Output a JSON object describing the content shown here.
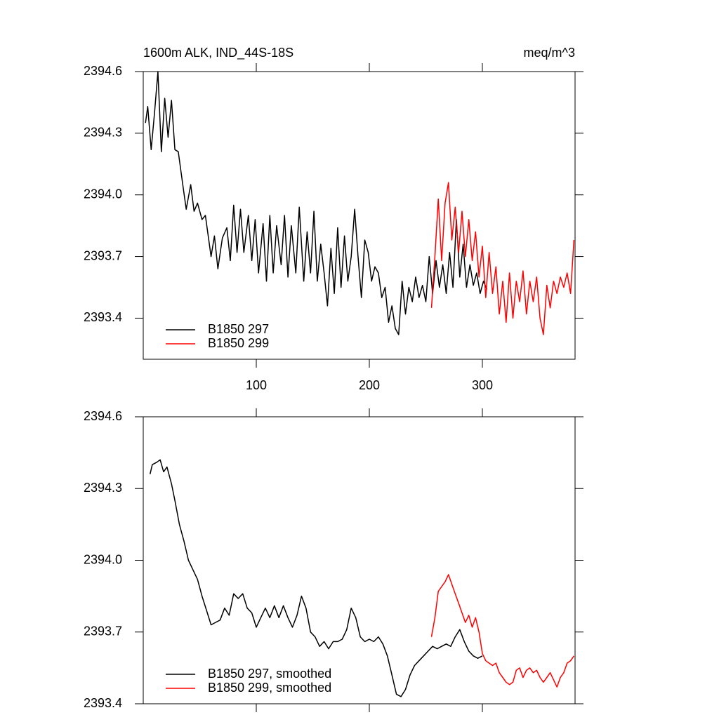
{
  "chart_data": [
    {
      "type": "line",
      "title": "1600m ALK, IND_44S-18S",
      "units": "meq/m^3",
      "xlim": [
        0,
        382
      ],
      "xticks": [
        100,
        200,
        300
      ],
      "ylim": [
        2393.2,
        2394.6
      ],
      "yticks": [
        2393.4,
        2393.7,
        {
          "value": 2394,
          "label": "2394.0"
        },
        2394.3,
        2394.6
      ],
      "legend": "bottom-left",
      "series": [
        {
          "name": "B1850 297",
          "color": "#000000",
          "x": [
            2,
            4,
            7,
            10,
            13,
            16,
            19,
            22,
            25,
            28,
            31,
            35,
            38,
            42,
            45,
            48,
            52,
            55,
            60,
            63,
            66,
            70,
            74,
            77,
            80,
            83,
            86,
            89,
            93,
            96,
            99,
            102,
            106,
            109,
            112,
            115,
            118,
            122,
            125,
            128,
            131,
            135,
            138,
            142,
            145,
            148,
            151,
            154,
            157,
            160,
            163,
            166,
            169,
            172,
            175,
            178,
            181,
            184,
            187,
            190,
            193,
            196,
            199,
            202,
            205,
            208,
            211,
            214,
            217,
            220,
            223,
            226,
            229,
            232,
            235,
            238,
            241,
            244,
            247,
            250,
            253,
            256,
            259,
            262,
            265,
            268,
            271,
            274,
            277,
            280,
            283,
            286,
            289,
            292,
            295,
            298,
            301,
            304
          ],
          "values": [
            2394.35,
            2394.43,
            2394.22,
            2394.4,
            2394.6,
            2394.21,
            2394.47,
            2394.28,
            2394.46,
            2394.22,
            2394.21,
            2394.05,
            2393.93,
            2394.05,
            2393.92,
            2393.96,
            2393.88,
            2393.9,
            2393.7,
            2393.8,
            2393.64,
            2393.79,
            2393.84,
            2393.68,
            2393.95,
            2393.72,
            2393.93,
            2393.72,
            2393.9,
            2393.68,
            2393.88,
            2393.62,
            2393.86,
            2393.58,
            2393.9,
            2393.62,
            2393.85,
            2393.66,
            2393.9,
            2393.6,
            2393.85,
            2393.62,
            2393.94,
            2393.58,
            2393.82,
            2393.62,
            2393.92,
            2393.58,
            2393.76,
            2393.62,
            2393.46,
            2393.74,
            2393.52,
            2393.84,
            2393.55,
            2393.8,
            2393.58,
            2393.7,
            2393.93,
            2393.7,
            2393.5,
            2393.78,
            2393.72,
            2393.58,
            2393.65,
            2393.62,
            2393.5,
            2393.55,
            2393.38,
            2393.46,
            2393.35,
            2393.32,
            2393.58,
            2393.42,
            2393.55,
            2393.48,
            2393.6,
            2393.5,
            2393.56,
            2393.48,
            2393.7,
            2393.52,
            2393.68,
            2393.55,
            2393.66,
            2393.52,
            2393.72,
            2393.55,
            2393.88,
            2393.6,
            2393.76,
            2393.55,
            2393.66,
            2393.56,
            2393.62,
            2393.52,
            2393.58,
            2393.54
          ]
        },
        {
          "name": "B1850 299",
          "color": "#ff0000",
          "x": [
            255,
            258,
            261,
            264,
            267,
            270,
            273,
            276,
            279,
            282,
            285,
            288,
            291,
            294,
            297,
            300,
            303,
            306,
            309,
            312,
            315,
            318,
            321,
            324,
            327,
            330,
            333,
            336,
            339,
            342,
            345,
            348,
            351,
            354,
            357,
            360,
            363,
            366,
            369,
            372,
            375,
            378,
            381
          ],
          "values": [
            2393.45,
            2393.7,
            2393.98,
            2393.68,
            2393.96,
            2394.06,
            2393.78,
            2393.94,
            2393.72,
            2393.92,
            2393.7,
            2393.88,
            2393.68,
            2393.82,
            2393.6,
            2393.75,
            2393.5,
            2393.72,
            2393.52,
            2393.65,
            2393.42,
            2393.58,
            2393.38,
            2393.62,
            2393.4,
            2393.58,
            2393.48,
            2393.63,
            2393.42,
            2393.58,
            2393.48,
            2393.6,
            2393.4,
            2393.32,
            2393.56,
            2393.45,
            2393.58,
            2393.52,
            2393.6,
            2393.55,
            2393.62,
            2393.52,
            2393.78
          ]
        }
      ]
    },
    {
      "type": "line",
      "xlim": [
        0,
        382
      ],
      "xticks": [
        100,
        200,
        300
      ],
      "ylim": [
        2393.4,
        2394.6
      ],
      "yticks": [
        2393.4,
        2393.7,
        {
          "value": 2394,
          "label": "2394.0"
        },
        2394.3,
        2394.6
      ],
      "legend": "bottom-left",
      "series": [
        {
          "name": "B1850 297, smoothed",
          "color": "#000000",
          "x": [
            6,
            8,
            12,
            15,
            18,
            21,
            25,
            28,
            32,
            36,
            40,
            44,
            48,
            52,
            56,
            60,
            64,
            68,
            72,
            76,
            80,
            84,
            88,
            92,
            96,
            100,
            104,
            108,
            112,
            116,
            120,
            124,
            128,
            132,
            136,
            140,
            144,
            148,
            152,
            156,
            160,
            164,
            168,
            172,
            176,
            180,
            184,
            188,
            192,
            196,
            200,
            204,
            208,
            212,
            216,
            220,
            224,
            228,
            232,
            236,
            240,
            244,
            248,
            252,
            256,
            260,
            264,
            268,
            272,
            276,
            280,
            284,
            288,
            292,
            296,
            300
          ],
          "values": [
            2394.36,
            2394.4,
            2394.41,
            2394.42,
            2394.37,
            2394.39,
            2394.32,
            2394.25,
            2394.15,
            2394.08,
            2394.0,
            2393.96,
            2393.92,
            2393.85,
            2393.79,
            2393.73,
            2393.74,
            2393.75,
            2393.8,
            2393.77,
            2393.86,
            2393.84,
            2393.86,
            2393.8,
            2393.78,
            2393.72,
            2393.76,
            2393.8,
            2393.76,
            2393.81,
            2393.76,
            2393.81,
            2393.76,
            2393.72,
            2393.77,
            2393.85,
            2393.8,
            2393.7,
            2393.68,
            2393.64,
            2393.66,
            2393.63,
            2393.66,
            2393.66,
            2393.67,
            2393.71,
            2393.8,
            2393.76,
            2393.68,
            2393.66,
            2393.67,
            2393.66,
            2393.68,
            2393.65,
            2393.6,
            2393.52,
            2393.44,
            2393.43,
            2393.46,
            2393.52,
            2393.56,
            2393.58,
            2393.6,
            2393.62,
            2393.64,
            2393.63,
            2393.64,
            2393.65,
            2393.64,
            2393.68,
            2393.71,
            2393.66,
            2393.62,
            2393.6,
            2393.59,
            2393.6
          ]
        },
        {
          "name": "B1850 299, smoothed",
          "color": "#ff0000",
          "x": [
            255,
            258,
            261,
            264,
            267,
            270,
            273,
            276,
            279,
            282,
            285,
            288,
            291,
            294,
            297,
            300,
            303,
            306,
            309,
            312,
            315,
            318,
            321,
            324,
            327,
            330,
            333,
            336,
            339,
            342,
            345,
            348,
            351,
            354,
            357,
            360,
            363,
            366,
            369,
            372,
            375,
            378,
            381
          ],
          "values": [
            2393.68,
            2393.76,
            2393.87,
            2393.89,
            2393.91,
            2393.94,
            2393.9,
            2393.86,
            2393.82,
            2393.78,
            2393.74,
            2393.77,
            2393.72,
            2393.76,
            2393.7,
            2393.61,
            2393.58,
            2393.57,
            2393.56,
            2393.57,
            2393.53,
            2393.51,
            2393.49,
            2393.48,
            2393.49,
            2393.54,
            2393.55,
            2393.51,
            2393.54,
            2393.55,
            2393.53,
            2393.54,
            2393.51,
            2393.49,
            2393.51,
            2393.53,
            2393.5,
            2393.47,
            2393.51,
            2393.53,
            2393.57,
            2393.58,
            2393.6
          ]
        }
      ]
    }
  ]
}
